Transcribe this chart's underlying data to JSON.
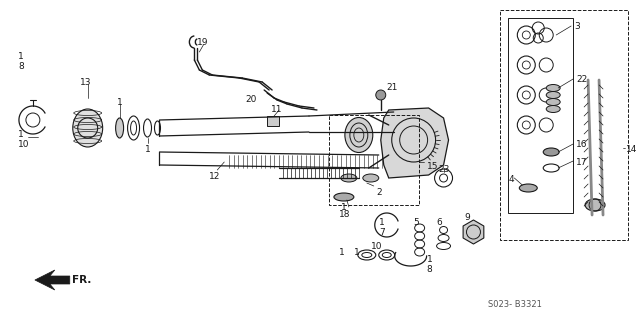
{
  "bg": "#ffffff",
  "fg": "#1a1a1a",
  "fig_w": 6.4,
  "fig_h": 3.19,
  "dpi": 100,
  "watermark": "S023- B3321",
  "fr_label": "FR."
}
